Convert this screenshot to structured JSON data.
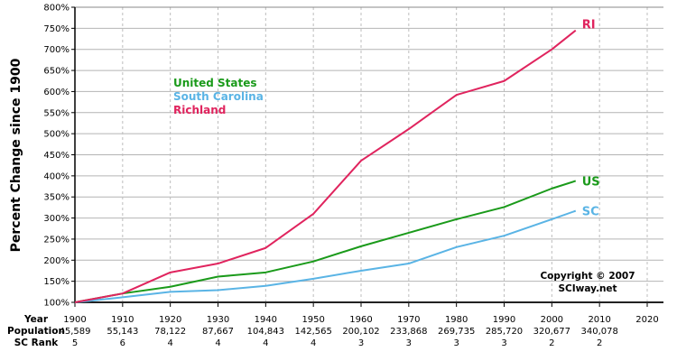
{
  "chart_data": {
    "type": "line",
    "title": "",
    "ylabel": "Percent Change since 1900",
    "xlabel": "Year",
    "ylim": [
      100,
      800
    ],
    "xlim": [
      1900,
      2020
    ],
    "y_ticks": [
      "100%",
      "150%",
      "200%",
      "250%",
      "300%",
      "350%",
      "400%",
      "450%",
      "500%",
      "550%",
      "600%",
      "650%",
      "700%",
      "750%",
      "800%"
    ],
    "x_ticks": [
      "1900",
      "1910",
      "1920",
      "1930",
      "1940",
      "1950",
      "1960",
      "1970",
      "1980",
      "1990",
      "2000",
      "2010",
      "2020"
    ],
    "grid": true,
    "x": [
      1900,
      1910,
      1920,
      1930,
      1940,
      1950,
      1960,
      1970,
      1980,
      1990,
      2000,
      2005
    ],
    "series": [
      {
        "name": "United States",
        "short": "US",
        "color": "#1a9a1a",
        "values": [
          100,
          121,
          137,
          161,
          171,
          197,
          233,
          265,
          297,
          326,
          370,
          388
        ]
      },
      {
        "name": "South Carolina",
        "short": "SC",
        "color": "#5ab4e5",
        "values": [
          100,
          112,
          125,
          129,
          139,
          156,
          175,
          192,
          231,
          258,
          297,
          317
        ]
      },
      {
        "name": "Richland",
        "short": "RI",
        "color": "#e0245e",
        "values": [
          100,
          121,
          171,
          192,
          229,
          310,
          436,
          511,
          592,
          625,
          700,
          745
        ]
      }
    ],
    "legend_position": "upper-left",
    "table": {
      "row_labels": [
        "Year",
        "Population",
        "SC Rank"
      ],
      "population": [
        "45,589",
        "55,143",
        "78,122",
        "87,667",
        "104,843",
        "142,565",
        "200,102",
        "233,868",
        "269,735",
        "285,720",
        "320,677",
        "340,078",
        ""
      ],
      "sc_rank": [
        "5",
        "6",
        "4",
        "4",
        "4",
        "4",
        "3",
        "3",
        "3",
        "3",
        "2",
        "2",
        ""
      ]
    },
    "annotations": [
      "Copyright © 2007",
      "SCIway.net"
    ]
  }
}
